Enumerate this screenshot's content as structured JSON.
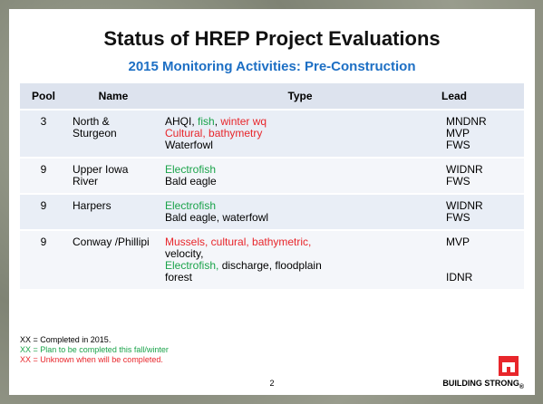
{
  "title": "Status of HREP Project Evaluations",
  "subtitle": "2015 Monitoring Activities: Pre-Construction",
  "table": {
    "header": [
      "Pool",
      "Name",
      "Type",
      "Lead"
    ],
    "rows": [
      {
        "pool": "3",
        "name": "North & Sturgeon",
        "type": [
          [
            {
              "text": "AHQI",
              "color": "#000000"
            },
            {
              "text": ", ",
              "color": "#000000"
            },
            {
              "text": "fish",
              "color": "#1aa34a"
            },
            {
              "text": ", ",
              "color": "#000000"
            },
            {
              "text": "winter wq",
              "color": "#e8262b"
            }
          ],
          [
            {
              "text": "Cultural, bathymetry",
              "color": "#e8262b"
            }
          ],
          [
            {
              "text": "Waterfowl",
              "color": "#000000"
            }
          ]
        ],
        "lead": [
          "MNDNR",
          "MVP",
          "FWS"
        ]
      },
      {
        "pool": "9",
        "name": "Upper Iowa River",
        "type": [
          [
            {
              "text": "Electrofish",
              "color": "#1aa34a"
            }
          ],
          [
            {
              "text": "Bald eagle",
              "color": "#000000"
            }
          ]
        ],
        "lead": [
          "WIDNR",
          "FWS"
        ]
      },
      {
        "pool": "9",
        "name": "Harpers",
        "type": [
          [
            {
              "text": "Electrofish",
              "color": "#1aa34a"
            }
          ],
          [
            {
              "text": "Bald eagle, waterfowl",
              "color": "#000000"
            }
          ]
        ],
        "lead": [
          "WIDNR",
          "FWS"
        ]
      },
      {
        "pool": "9",
        "name": "Conway /Phillipi",
        "type": [
          [
            {
              "text": "Mussels, cultural, bathymetric,",
              "color": "#e8262b"
            }
          ],
          [
            {
              "text": "velocity,",
              "color": "#000000"
            }
          ],
          [
            {
              "text": "Electrofish,",
              "color": "#1aa34a"
            },
            {
              "text": " discharge, floodplain",
              "color": "#000000"
            }
          ],
          [
            {
              "text": "forest",
              "color": "#000000"
            }
          ]
        ],
        "lead": [
          "MVP",
          "IDNR"
        ]
      }
    ]
  },
  "legend": [
    {
      "text": "XX = Completed in 2015.",
      "color": "#000000"
    },
    {
      "text": "XX = Plan to be completed this fall/winter",
      "color": "#1aa34a"
    },
    {
      "text": "XX = Unknown when will be completed.",
      "color": "#e8262b"
    }
  ],
  "page_number": "2",
  "footer": "BUILDING STRONG",
  "footer_mark": "®"
}
